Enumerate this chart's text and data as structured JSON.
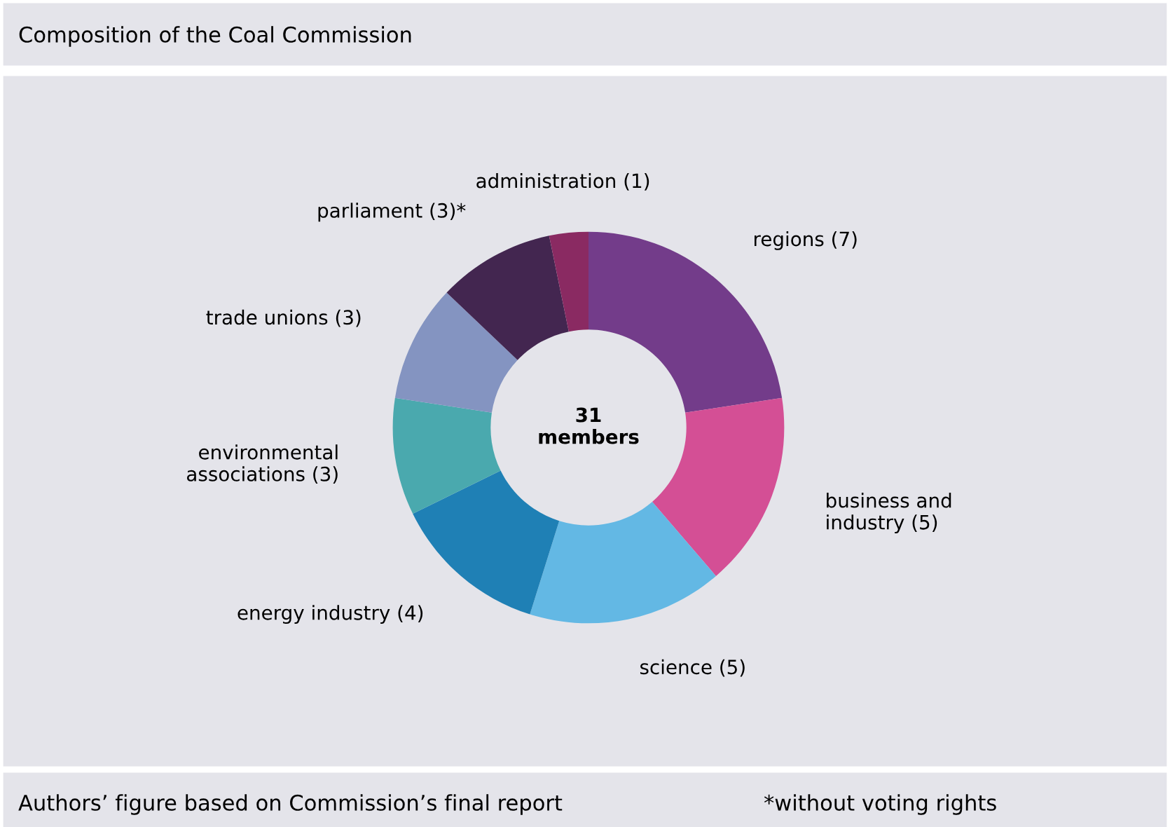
{
  "chart_data": {
    "type": "donut",
    "title": "Composition of the Coal Commission",
    "categories": [
      "regions (7)",
      "business and\nindustry (5)",
      "science (5)",
      "energy industry (4)",
      "environmental\nassociations (3)",
      "trade unions (3)",
      "parliament (3)*",
      "administration (1)"
    ],
    "values": [
      7,
      5,
      5,
      4,
      3,
      3,
      3,
      1
    ],
    "colors": [
      "#733c8a",
      "#d44f95",
      "#63b8e4",
      "#1f80b5",
      "#4aa9ae",
      "#8494c1",
      "#432650",
      "#8a2a62"
    ],
    "annotations": [
      "31\nmembers",
      "Authors’ figure based on Commission’s final report",
      "*without voting rights"
    ],
    "legend": false
  }
}
